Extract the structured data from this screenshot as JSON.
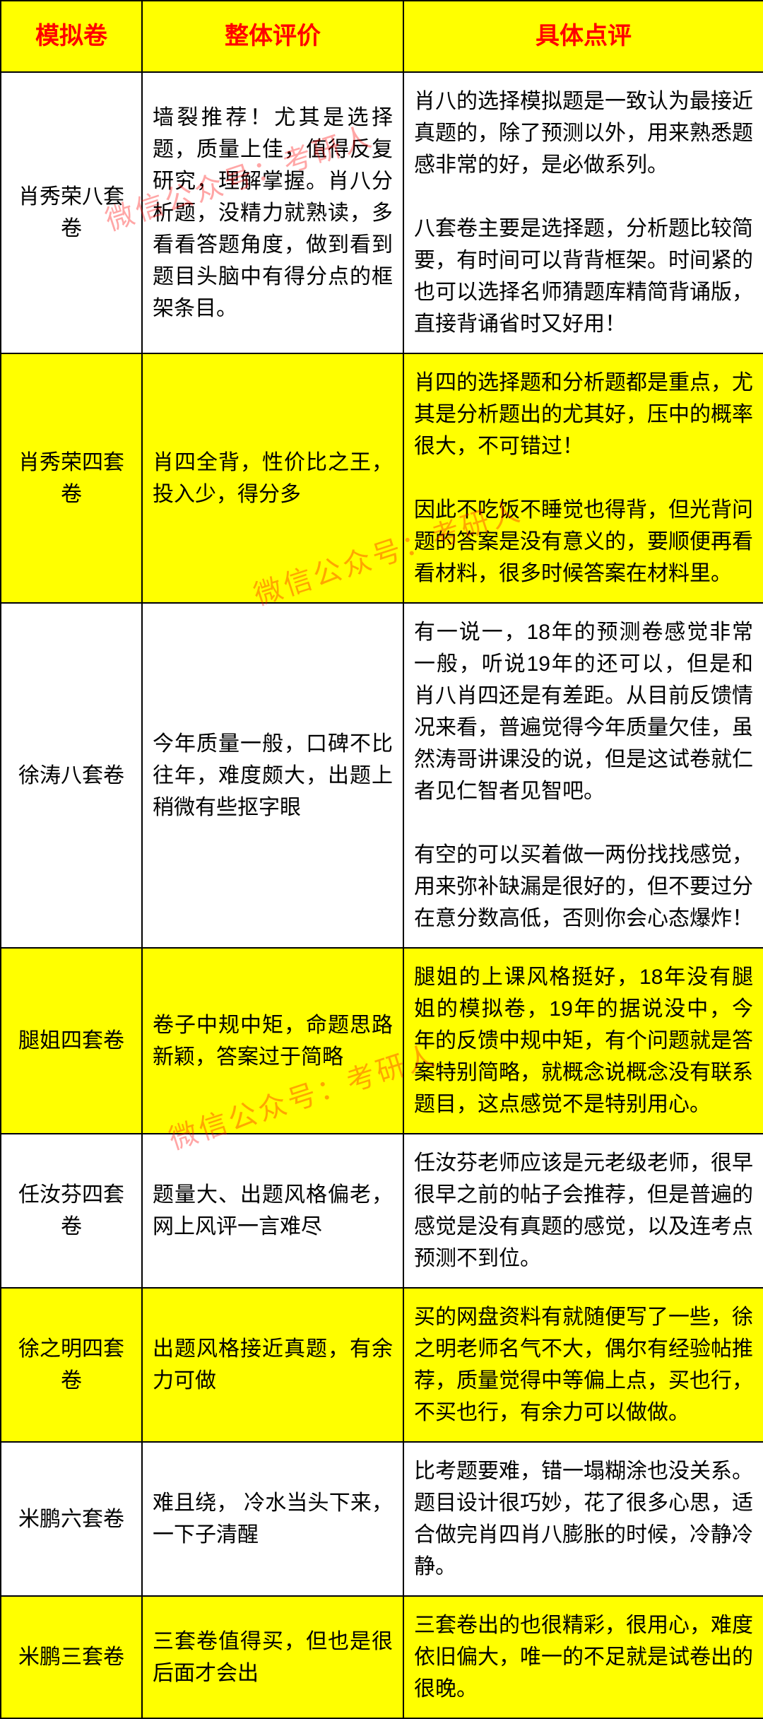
{
  "table": {
    "header_bg": "#ffff00",
    "header_color": "#ff0000",
    "row_alt_bg": "#ffff00",
    "row_bg": "#ffffff",
    "border_color": "#000000",
    "columns": {
      "name": "模拟卷",
      "overall": "整体评价",
      "detail": "具体点评"
    },
    "rows": [
      {
        "highlight": false,
        "name": "肖秀荣八套卷",
        "overall": "墙裂推荐！尤其是选择题，质量上佳，值得反复研究，理解掌握。肖八分析题，没精力就熟读，多看看答题角度，做到看到题目头脑中有得分点的框架条目。",
        "detail": "肖八的选择模拟题是一致认为最接近真题的，除了预测以外，用来熟悉题感非常的好，是必做系列。\n\n八套卷主要是选择题，分析题比较简要，有时间可以背背框架。时间紧的也可以选择名师猜题库精简背诵版，直接背诵省时又好用！"
      },
      {
        "highlight": true,
        "name": "肖秀荣四套卷",
        "overall": "肖四全背，性价比之王，投入少，得分多",
        "detail": "肖四的选择题和分析题都是重点，尤其是分析题出的尤其好，压中的概率很大，不可错过！\n\n因此不吃饭不睡觉也得背，但光背问题的答案是没有意义的，要顺便再看看材料，很多时候答案在材料里。"
      },
      {
        "highlight": false,
        "name": "徐涛八套卷",
        "overall": "今年质量一般，口碑不比往年，难度颇大，出题上稍微有些抠字眼",
        "detail": "有一说一，18年的预测卷感觉非常一般，听说19年的还可以，但是和肖八肖四还是有差距。从目前反馈情况来看，普遍觉得今年质量欠佳，虽然涛哥讲课没的说，但是这试卷就仁者见仁智者见智吧。\n\n有空的可以买着做一两份找找感觉，用来弥补缺漏是很好的，但不要过分在意分数高低，否则你会心态爆炸！"
      },
      {
        "highlight": true,
        "name": "腿姐四套卷",
        "overall": "卷子中规中矩，命题思路新颖，答案过于简略",
        "detail": "腿姐的上课风格挺好，18年没有腿姐的模拟卷，19年的据说没中，今年的反馈中规中矩，有个问题就是答案特别简略，就概念说概念没有联系题目，这点感觉不是特别用心。"
      },
      {
        "highlight": false,
        "name": "任汝芬四套卷",
        "overall": "题量大、出题风格偏老，网上风评一言难尽",
        "detail": "任汝芬老师应该是元老级老师，很早很早之前的帖子会推荐，但是普遍的感觉是没有真题的感觉，以及连考点预测不到位。"
      },
      {
        "highlight": true,
        "name": "徐之明四套卷",
        "overall": "出题风格接近真题，有余力可做",
        "detail": "买的网盘资料有就随便写了一些，徐之明老师名气不大，偶尔有经验帖推荐，质量觉得中等偏上点，买也行，不买也行，有余力可以做做。"
      },
      {
        "highlight": false,
        "name": "米鹏六套卷",
        "overall": "难且绕， 冷水当头下来，一下子清醒",
        "detail": "比考题要难，错一塌糊涂也没关系。题目设计很巧妙，花了很多心思，适合做完肖四肖八膨胀的时候，冷静冷静。"
      },
      {
        "highlight": true,
        "name": "米鹏三套卷",
        "overall": "三套卷值得买，但也是很后面才会出",
        "detail": "三套卷出的也很精彩，很用心，难度依旧偏大，唯一的不足就是试卷出的很晚。"
      }
    ]
  },
  "watermark": {
    "text": "微信公众号：考研人",
    "color": "rgba(255,0,0,0.35)"
  }
}
